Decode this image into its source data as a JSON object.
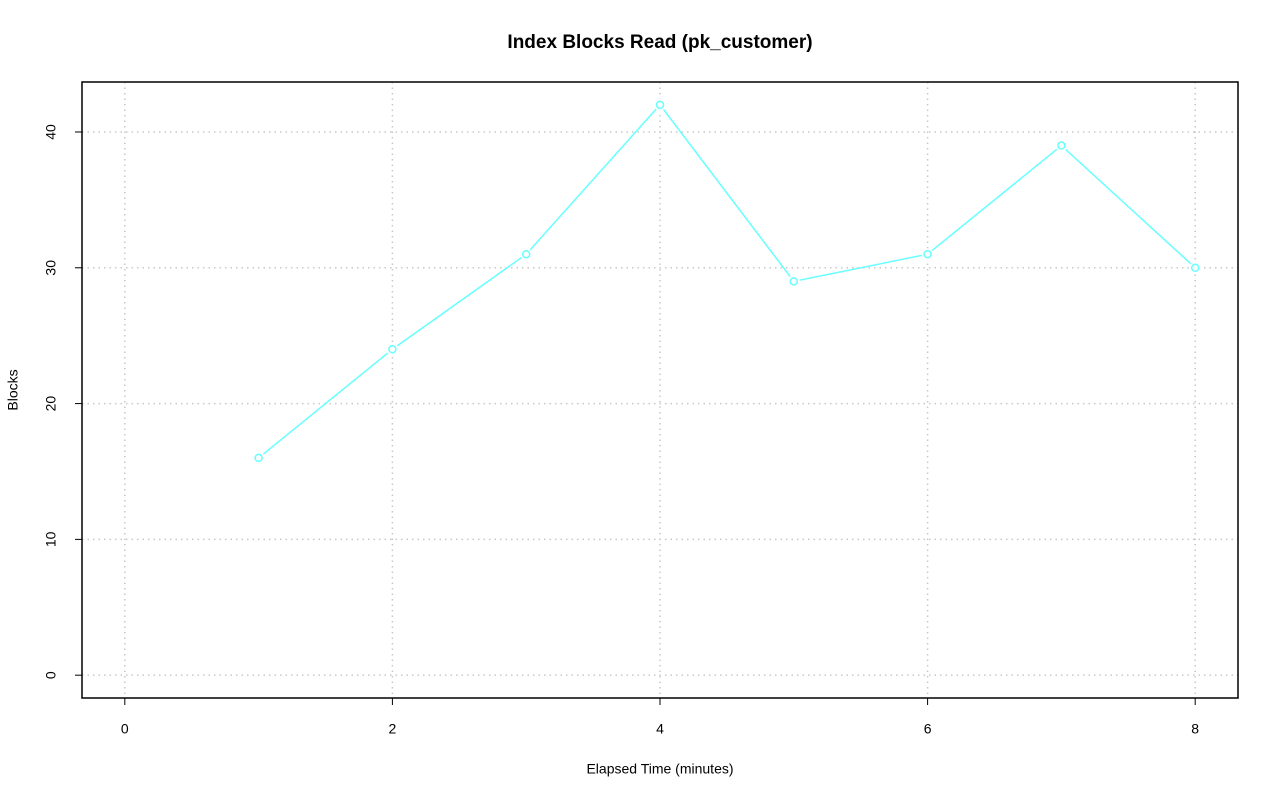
{
  "chart_data": {
    "type": "line",
    "title": "Index Blocks Read (pk_customer)",
    "x_label": "Elapsed Time (minutes)",
    "y_label": "Blocks",
    "x": [
      1,
      2,
      3,
      4,
      5,
      6,
      7,
      8
    ],
    "values": [
      16,
      24,
      31,
      42,
      29,
      31,
      39,
      30
    ],
    "color": "#66ffff",
    "xlim": [
      -0.32,
      8.32
    ],
    "xticks": [
      0,
      2,
      4,
      6,
      8
    ],
    "ylim": [
      -1.68,
      43.68
    ],
    "yticks": [
      0,
      10,
      20,
      30,
      40
    ],
    "grid": true
  }
}
